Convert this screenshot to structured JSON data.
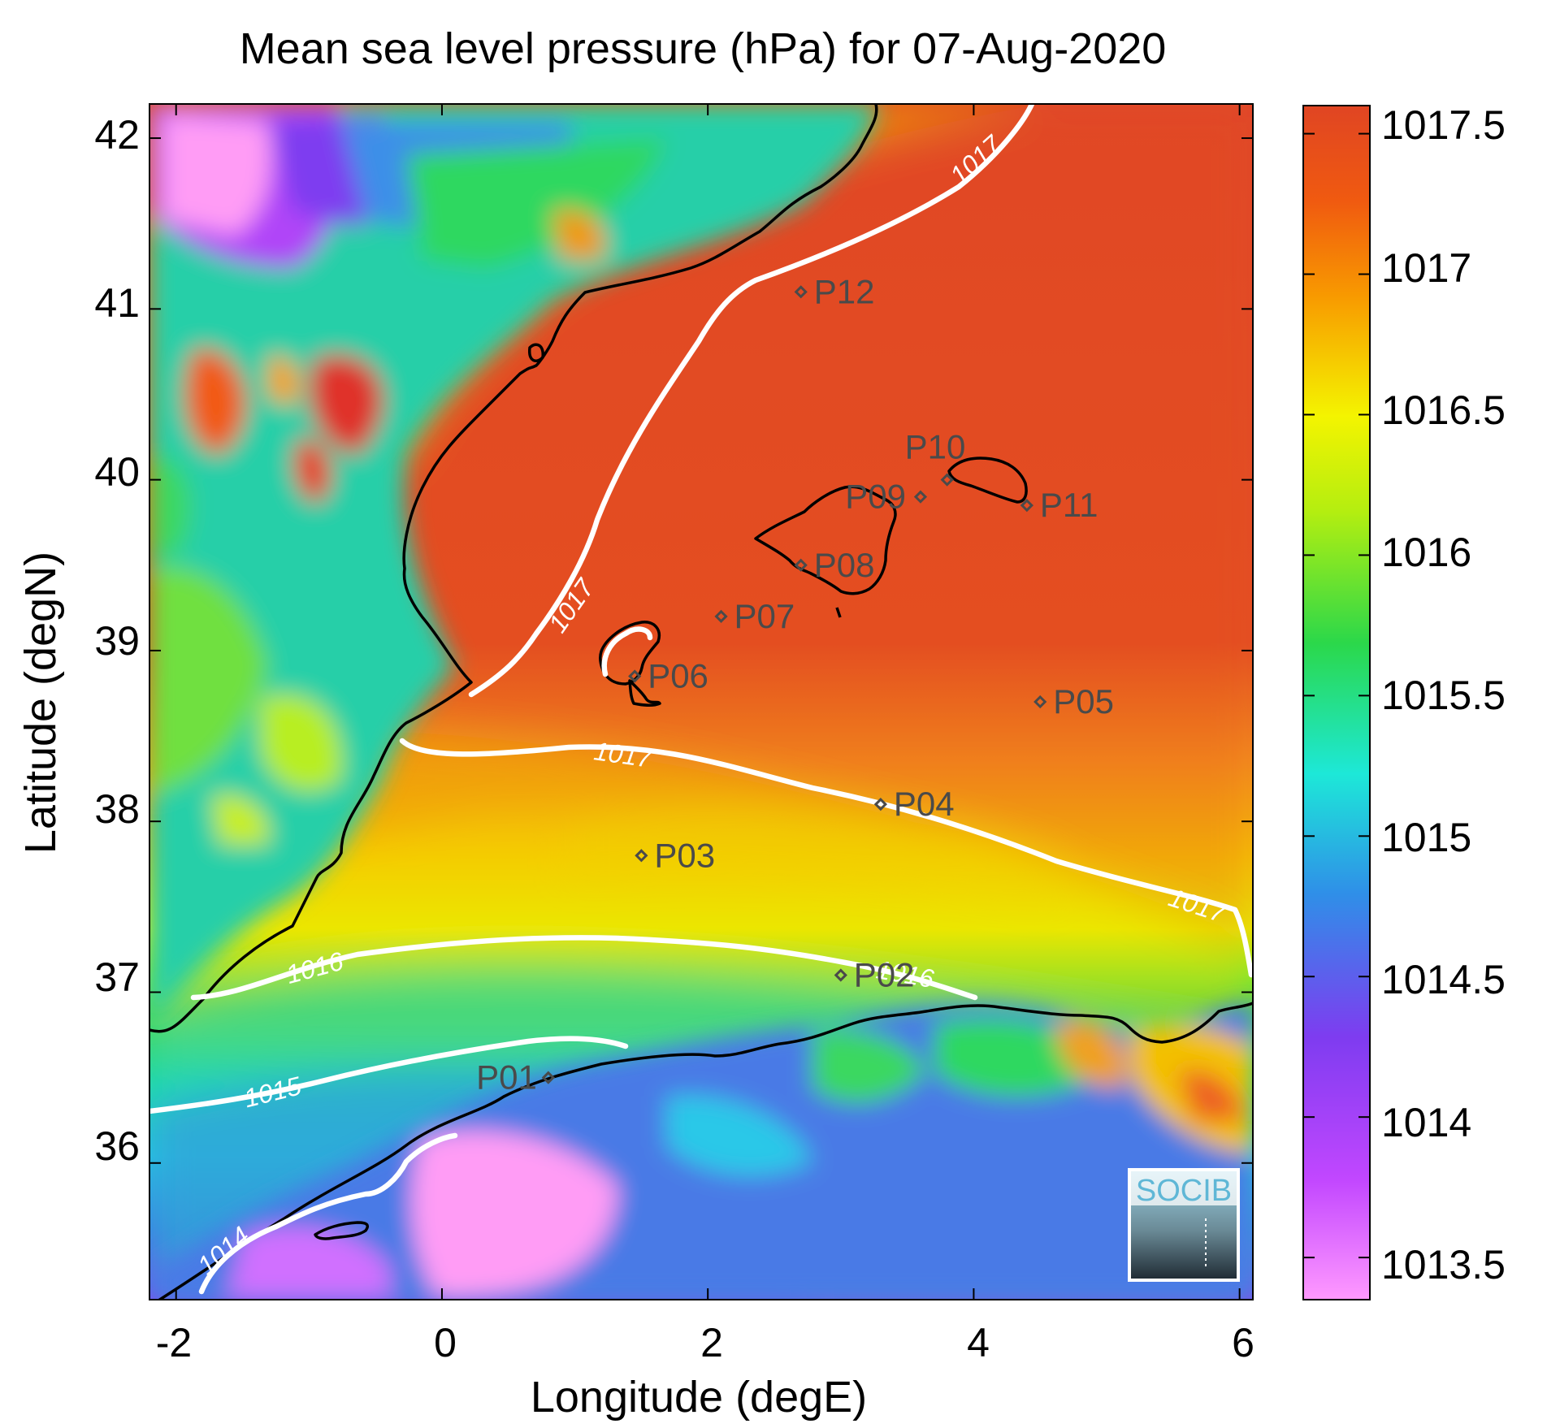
{
  "title": "Mean sea level pressure (hPa) for 07-Aug-2020",
  "xlabel": "Longitude (degE)",
  "ylabel": "Latitude (degN)",
  "xticks": [
    "-2",
    "0",
    "2",
    "4",
    "6"
  ],
  "yticks": [
    "42",
    "41",
    "40",
    "39",
    "38",
    "37",
    "36"
  ],
  "colorbar": {
    "labels": [
      "1017.5",
      "1017",
      "1016.5",
      "1016",
      "1015.5",
      "1015",
      "1014.5",
      "1014",
      "1013.5"
    ],
    "range": [
      1013.35,
      1017.6
    ],
    "colormap": [
      "#ff99ff",
      "#c247ff",
      "#7e3cf0",
      "#2f8fe8",
      "#1de8d8",
      "#2bd84a",
      "#b4ee10",
      "#f4f400",
      "#f89a00",
      "#f05a10",
      "#e04523"
    ]
  },
  "chart_data": {
    "type": "heatmap",
    "xlim": [
      -2.2,
      6.1
    ],
    "ylim": [
      35.2,
      42.2
    ],
    "contours": [
      {
        "label": "1014",
        "value": 1014
      },
      {
        "label": "1015",
        "value": 1015
      },
      {
        "label": "1016",
        "value": 1016
      },
      {
        "label": "1017",
        "value": 1017
      }
    ],
    "stations": [
      {
        "name": "P01",
        "lon": 0.8,
        "lat": 36.5
      },
      {
        "name": "P02",
        "lon": 3.0,
        "lat": 37.1
      },
      {
        "name": "P03",
        "lon": 1.5,
        "lat": 37.8
      },
      {
        "name": "P04",
        "lon": 3.3,
        "lat": 38.1
      },
      {
        "name": "P05",
        "lon": 4.5,
        "lat": 38.7
      },
      {
        "name": "P06",
        "lon": 1.45,
        "lat": 38.85
      },
      {
        "name": "P07",
        "lon": 2.1,
        "lat": 39.2
      },
      {
        "name": "P08",
        "lon": 2.7,
        "lat": 39.5
      },
      {
        "name": "P09",
        "lon": 3.6,
        "lat": 39.9
      },
      {
        "name": "P10",
        "lon": 3.8,
        "lat": 40.0
      },
      {
        "name": "P11",
        "lon": 4.4,
        "lat": 39.85
      },
      {
        "name": "P12",
        "lon": 2.7,
        "lat": 41.1
      }
    ]
  },
  "logo": "SOCIB"
}
